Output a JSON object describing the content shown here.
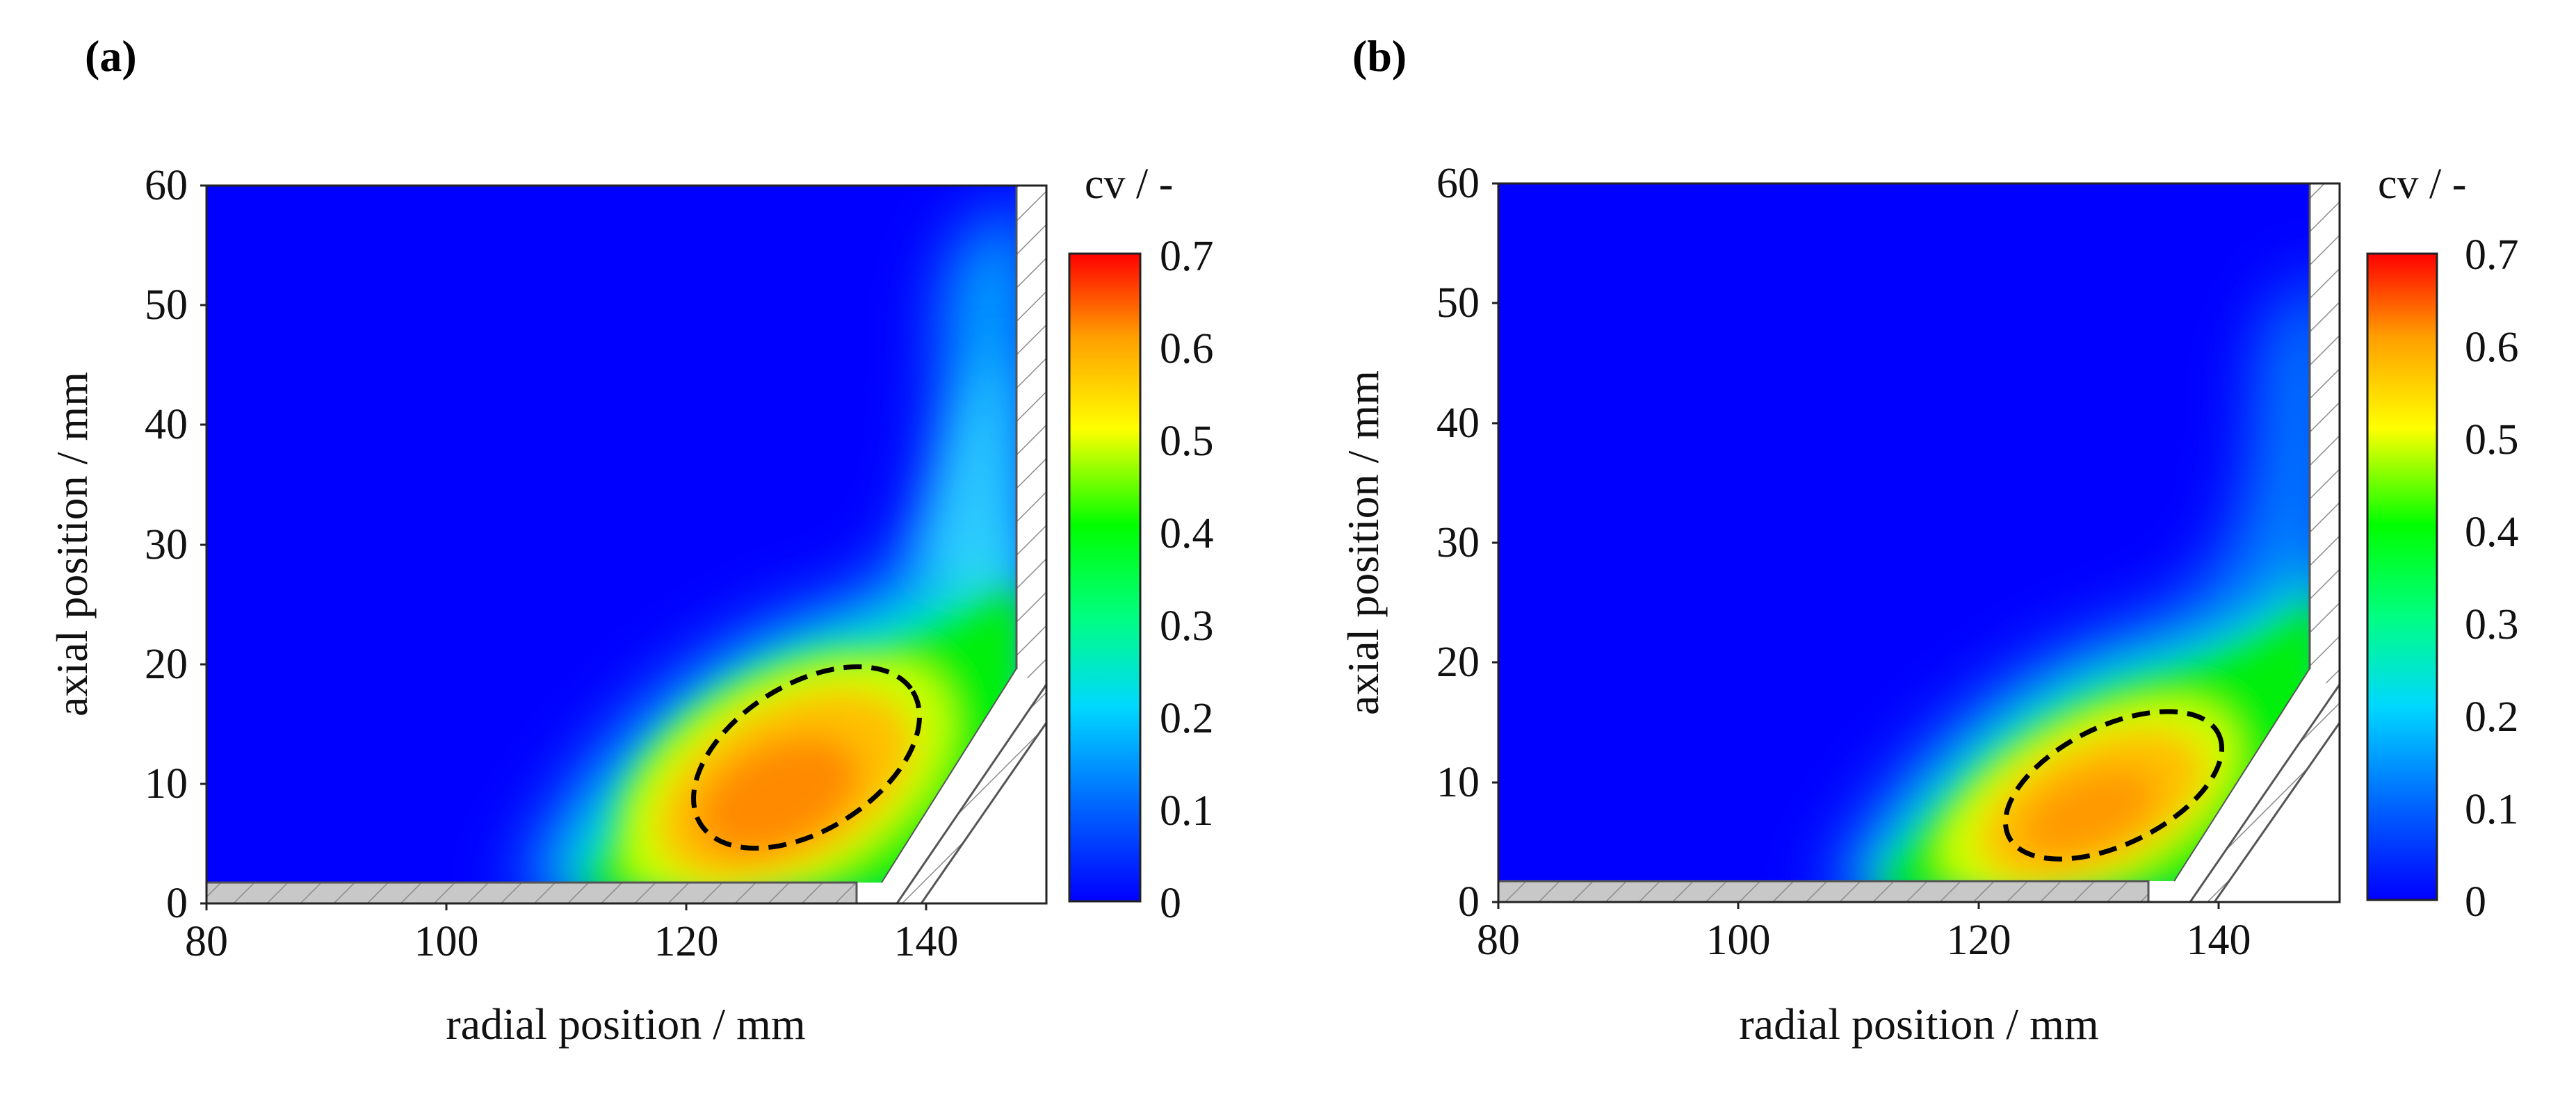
{
  "chart_data": [
    {
      "type": "heatmap",
      "panel_label": "(a)",
      "xlabel": "radial position / mm",
      "ylabel": "axial position / mm",
      "xlim": [
        80,
        150
      ],
      "ylim": [
        0,
        60
      ],
      "xticks": [
        "80",
        "100",
        "120",
        "140"
      ],
      "xtick_values": [
        80,
        100,
        120,
        140
      ],
      "yticks": [
        "0",
        "10",
        "20",
        "30",
        "40",
        "50",
        "60"
      ],
      "ytick_values": [
        0,
        10,
        20,
        30,
        40,
        50,
        60
      ],
      "colorbar": {
        "title": "cv / -",
        "range": [
          0,
          0.7
        ],
        "ticks": [
          "0",
          "0.1",
          "0.2",
          "0.3",
          "0.4",
          "0.5",
          "0.6",
          "0.7"
        ],
        "tick_values": [
          0,
          0.1,
          0.2,
          0.3,
          0.4,
          0.5,
          0.6,
          0.7
        ]
      },
      "hotspot": {
        "center_x": 128,
        "center_y": 8,
        "max_cv": 0.63
      },
      "highlight_ellipse": {
        "center_x": 130,
        "center_y": 10.5,
        "semi_axis_x": 11,
        "semi_axis_y": 6.5,
        "angle_deg": 30
      },
      "wall_r_mm": 148,
      "bottom_plate_end_mm": 135,
      "cone_top_y_mm": 19,
      "cone_bottom_x_mm": 137
    },
    {
      "type": "heatmap",
      "panel_label": "(b)",
      "xlabel": "radial position / mm",
      "ylabel": "axial position / mm",
      "xlim": [
        80,
        150
      ],
      "ylim": [
        0,
        60
      ],
      "xticks": [
        "80",
        "100",
        "120",
        "140"
      ],
      "xtick_values": [
        80,
        100,
        120,
        140
      ],
      "yticks": [
        "0",
        "10",
        "20",
        "30",
        "40",
        "50",
        "60"
      ],
      "ytick_values": [
        0,
        10,
        20,
        30,
        40,
        50,
        60
      ],
      "colorbar": {
        "title": "cv / -",
        "range": [
          0,
          0.7
        ],
        "ticks": [
          "0",
          "0.1",
          "0.2",
          "0.3",
          "0.4",
          "0.5",
          "0.6",
          "0.7"
        ],
        "tick_values": [
          0,
          0.1,
          0.2,
          0.3,
          0.4,
          0.5,
          0.6,
          0.7
        ]
      },
      "hotspot": {
        "center_x": 130,
        "center_y": 7,
        "max_cv": 0.6
      },
      "highlight_ellipse": {
        "center_x": 130.5,
        "center_y": 9.5,
        "semi_axis_x": 10,
        "semi_axis_y": 5,
        "angle_deg": 25
      },
      "wall_r_mm": 148,
      "bottom_plate_end_mm": 135,
      "cone_top_y_mm": 19,
      "cone_bottom_x_mm": 137
    }
  ],
  "colors": {
    "scale": [
      "#0000ff",
      "#0060ff",
      "#00d8ff",
      "#00ff80",
      "#00ff00",
      "#ffff00",
      "#ffa000",
      "#ff0000"
    ],
    "bottom_plate": "#c8c8c8",
    "hatch": "#8c8c8c",
    "background": "#ffffff",
    "ellipse": "#000000"
  }
}
